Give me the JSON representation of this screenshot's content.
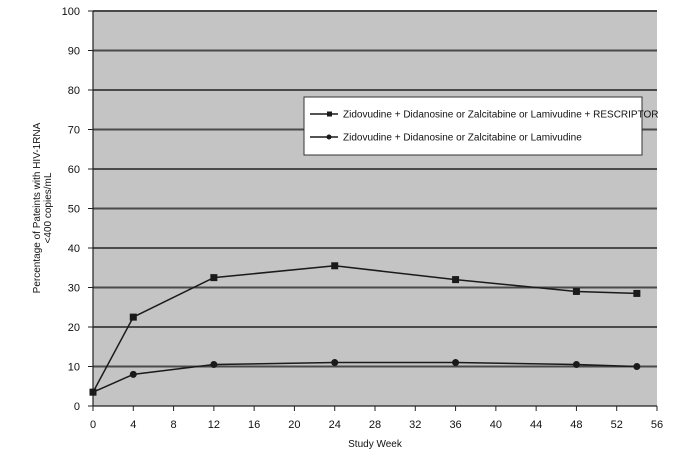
{
  "chart_data": {
    "type": "line",
    "title": "",
    "xlabel": "Study Week",
    "ylabel": "Percentage of Pateints with HIV-1RNA <400 copies/mL",
    "ylabel_lines": [
      "Percentage of Pateints with HIV-1RNA",
      "<400 copies/mL"
    ],
    "xlim": [
      0,
      56
    ],
    "ylim": [
      0,
      100
    ],
    "x_ticks": [
      0,
      4,
      8,
      12,
      16,
      20,
      24,
      28,
      32,
      36,
      40,
      44,
      48,
      52,
      56
    ],
    "y_ticks": [
      0,
      10,
      20,
      30,
      40,
      50,
      60,
      70,
      80,
      90,
      100
    ],
    "grid": "horizontal",
    "legend_position": "upper-right (inside plot)",
    "x": [
      0,
      4,
      12,
      24,
      36,
      48,
      54
    ],
    "series": [
      {
        "name": "Zidovudine + Didanosine or Zalcitabine or Lamivudine + RESCRIPTOR",
        "marker": "square",
        "values": [
          3.5,
          22.5,
          32.5,
          35.5,
          32,
          29,
          28.5
        ]
      },
      {
        "name": "Zidovudine + Didanosine or Zalcitabine or Lamivudine",
        "marker": "circle",
        "values": [
          3.5,
          8,
          10.5,
          11,
          11,
          10.5,
          10
        ]
      }
    ],
    "colors": {
      "plot_background": "#c4c4c4",
      "gridline": "#4a4a4a",
      "line": "#1a1a1a",
      "legend_background": "#ffffff"
    }
  }
}
